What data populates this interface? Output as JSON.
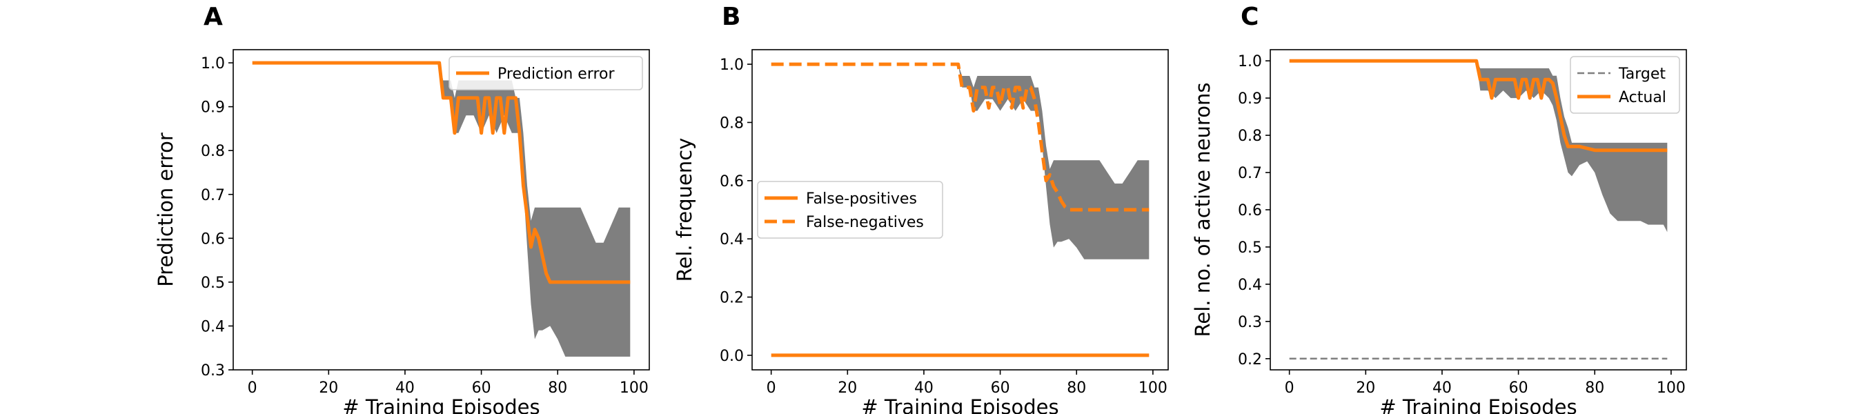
{
  "colors": {
    "orange": "#ff7f0e",
    "band": "#7f7f7f",
    "target": "#7f7f7f",
    "axis": "#000000"
  },
  "chart_data": [
    {
      "panel": "A",
      "type": "line",
      "xlabel": "# Training Episodes",
      "ylabel": "Prediction error",
      "xlim": [
        -5,
        104
      ],
      "ylim": [
        0.3,
        1.03
      ],
      "xticks": [
        0,
        20,
        40,
        60,
        80,
        100
      ],
      "yticks": [
        0.3,
        0.4,
        0.5,
        0.6,
        0.7,
        0.8,
        0.9,
        1.0
      ],
      "ytick_labels": [
        "0.3",
        "0.4",
        "0.5",
        "0.6",
        "0.7",
        "0.8",
        "0.9",
        "1.0"
      ],
      "legend": {
        "position": "upper right"
      },
      "series": [
        {
          "name": "Prediction error",
          "style": "solid",
          "x": [
            0,
            49,
            50,
            52,
            53,
            54,
            55,
            56,
            57,
            58,
            59,
            60,
            61,
            62,
            63,
            64,
            65,
            66,
            67,
            68,
            69,
            70,
            71,
            72,
            73,
            74,
            75,
            76,
            77,
            78,
            80,
            90,
            99
          ],
          "y": [
            1.0,
            1.0,
            0.92,
            0.92,
            0.84,
            0.92,
            0.92,
            0.92,
            0.92,
            0.92,
            0.92,
            0.84,
            0.92,
            0.92,
            0.84,
            0.92,
            0.92,
            0.84,
            0.92,
            0.92,
            0.92,
            0.84,
            0.72,
            0.65,
            0.58,
            0.62,
            0.6,
            0.56,
            0.52,
            0.5,
            0.5,
            0.5,
            0.5
          ]
        }
      ],
      "band": {
        "x": [
          49,
          50,
          52,
          53,
          54,
          56,
          58,
          60,
          62,
          64,
          66,
          68,
          69,
          70,
          71,
          72,
          73,
          74,
          75,
          76,
          78,
          80,
          82,
          84,
          86,
          88,
          90,
          92,
          94,
          96,
          97,
          98,
          99
        ],
        "upper": [
          1.0,
          0.96,
          0.96,
          0.92,
          0.96,
          0.96,
          0.96,
          0.96,
          0.96,
          0.96,
          0.96,
          0.96,
          0.92,
          0.92,
          0.84,
          0.72,
          0.64,
          0.67,
          0.67,
          0.67,
          0.67,
          0.67,
          0.67,
          0.67,
          0.67,
          0.63,
          0.59,
          0.59,
          0.63,
          0.67,
          0.67,
          0.67,
          0.67
        ],
        "lower": [
          1.0,
          0.92,
          0.92,
          0.84,
          0.84,
          0.88,
          0.88,
          0.84,
          0.88,
          0.84,
          0.88,
          0.84,
          0.84,
          0.84,
          0.72,
          0.58,
          0.45,
          0.37,
          0.39,
          0.39,
          0.4,
          0.37,
          0.33,
          0.33,
          0.33,
          0.33,
          0.33,
          0.33,
          0.33,
          0.33,
          0.33,
          0.33,
          0.33
        ]
      }
    },
    {
      "panel": "B",
      "type": "line",
      "xlabel": "# Training Episodes",
      "ylabel": "Rel. frequency",
      "xlim": [
        -5,
        104
      ],
      "ylim": [
        -0.05,
        1.05
      ],
      "xticks": [
        0,
        20,
        40,
        60,
        80,
        100
      ],
      "yticks": [
        0.0,
        0.2,
        0.4,
        0.6,
        0.8,
        1.0
      ],
      "ytick_labels": [
        "0.0",
        "0.2",
        "0.4",
        "0.6",
        "0.8",
        "1.0"
      ],
      "legend": {
        "position": "center left"
      },
      "series": [
        {
          "name": "False-positives",
          "style": "solid",
          "x": [
            0,
            99
          ],
          "y": [
            0.0,
            0.0
          ]
        },
        {
          "name": "False-negatives",
          "style": "dashed",
          "x": [
            0,
            49,
            50,
            52,
            53,
            54,
            55,
            56,
            57,
            58,
            59,
            60,
            61,
            62,
            63,
            64,
            65,
            66,
            67,
            68,
            69,
            70,
            71,
            72,
            73,
            74,
            75,
            76,
            77,
            78,
            80,
            90,
            99
          ],
          "y": [
            1.0,
            1.0,
            0.92,
            0.92,
            0.84,
            0.92,
            0.92,
            0.92,
            0.85,
            0.92,
            0.92,
            0.86,
            0.92,
            0.92,
            0.85,
            0.92,
            0.92,
            0.85,
            0.92,
            0.92,
            0.88,
            0.8,
            0.7,
            0.6,
            0.62,
            0.58,
            0.56,
            0.53,
            0.51,
            0.5,
            0.5,
            0.5,
            0.5
          ]
        }
      ],
      "band": {
        "x": [
          49,
          50,
          52,
          53,
          54,
          56,
          58,
          60,
          62,
          64,
          66,
          68,
          69,
          70,
          71,
          72,
          73,
          74,
          75,
          76,
          78,
          80,
          82,
          84,
          86,
          88,
          90,
          92,
          94,
          96,
          97,
          98,
          99
        ],
        "upper": [
          1.0,
          0.96,
          0.96,
          0.92,
          0.96,
          0.96,
          0.96,
          0.96,
          0.96,
          0.96,
          0.96,
          0.96,
          0.92,
          0.92,
          0.84,
          0.72,
          0.64,
          0.67,
          0.67,
          0.67,
          0.67,
          0.67,
          0.67,
          0.67,
          0.67,
          0.63,
          0.59,
          0.59,
          0.63,
          0.67,
          0.67,
          0.67,
          0.67
        ],
        "lower": [
          1.0,
          0.92,
          0.92,
          0.84,
          0.84,
          0.88,
          0.88,
          0.84,
          0.88,
          0.84,
          0.88,
          0.84,
          0.84,
          0.84,
          0.72,
          0.58,
          0.45,
          0.37,
          0.39,
          0.39,
          0.4,
          0.37,
          0.33,
          0.33,
          0.33,
          0.33,
          0.33,
          0.33,
          0.33,
          0.33,
          0.33,
          0.33,
          0.33
        ]
      }
    },
    {
      "panel": "C",
      "type": "line",
      "xlabel": "# Training Episodes",
      "ylabel": "Rel. no. of active neurons",
      "xlim": [
        -5,
        104
      ],
      "ylim": [
        0.17,
        1.03
      ],
      "xticks": [
        0,
        20,
        40,
        60,
        80,
        100
      ],
      "yticks": [
        0.2,
        0.3,
        0.4,
        0.5,
        0.6,
        0.7,
        0.8,
        0.9,
        1.0
      ],
      "ytick_labels": [
        "0.2",
        "0.3",
        "0.4",
        "0.5",
        "0.6",
        "0.7",
        "0.8",
        "0.9",
        "1.0"
      ],
      "legend": {
        "position": "upper right"
      },
      "series": [
        {
          "name": "Target",
          "style": "dashed-thin",
          "x": [
            0,
            99
          ],
          "y": [
            0.2,
            0.2
          ]
        },
        {
          "name": "Actual",
          "style": "solid",
          "x": [
            0,
            49,
            50,
            52,
            53,
            54,
            55,
            56,
            57,
            58,
            59,
            60,
            61,
            62,
            63,
            64,
            65,
            66,
            67,
            68,
            69,
            70,
            71,
            72,
            73,
            74,
            75,
            76,
            78,
            80,
            82,
            90,
            99
          ],
          "y": [
            1.0,
            1.0,
            0.95,
            0.95,
            0.9,
            0.95,
            0.95,
            0.95,
            0.95,
            0.95,
            0.95,
            0.9,
            0.95,
            0.95,
            0.9,
            0.95,
            0.95,
            0.9,
            0.95,
            0.95,
            0.94,
            0.9,
            0.85,
            0.8,
            0.77,
            0.77,
            0.77,
            0.77,
            0.765,
            0.76,
            0.76,
            0.76,
            0.76
          ]
        }
      ],
      "band": {
        "x": [
          49,
          50,
          52,
          54,
          56,
          58,
          60,
          62,
          64,
          66,
          68,
          69,
          70,
          71,
          72,
          73,
          74,
          76,
          78,
          80,
          82,
          84,
          86,
          88,
          90,
          92,
          94,
          96,
          98,
          99
        ],
        "upper": [
          1.0,
          0.98,
          0.98,
          0.98,
          0.98,
          0.98,
          0.98,
          0.98,
          0.98,
          0.98,
          0.98,
          0.96,
          0.96,
          0.9,
          0.85,
          0.82,
          0.78,
          0.78,
          0.78,
          0.78,
          0.78,
          0.78,
          0.78,
          0.78,
          0.78,
          0.78,
          0.78,
          0.78,
          0.78,
          0.78
        ],
        "lower": [
          1.0,
          0.92,
          0.92,
          0.9,
          0.92,
          0.9,
          0.9,
          0.92,
          0.9,
          0.92,
          0.9,
          0.88,
          0.84,
          0.78,
          0.74,
          0.7,
          0.69,
          0.72,
          0.73,
          0.7,
          0.64,
          0.59,
          0.57,
          0.57,
          0.57,
          0.57,
          0.56,
          0.56,
          0.56,
          0.54
        ]
      }
    }
  ]
}
